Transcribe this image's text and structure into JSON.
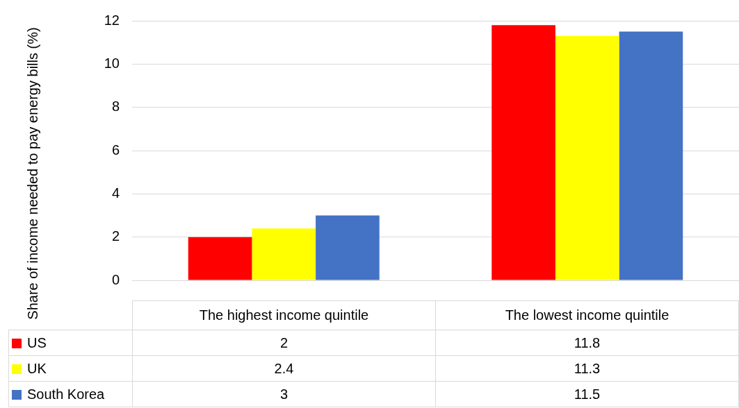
{
  "chart_data": {
    "type": "bar",
    "ylabel": "Share of income needed to pay energy bills (%)",
    "categories": [
      "The highest income quintile",
      "The lowest income quintile"
    ],
    "series": [
      {
        "name": "US",
        "color": "#ff0000",
        "values": [
          2,
          11.8
        ]
      },
      {
        "name": "UK",
        "color": "#ffff00",
        "values": [
          2.4,
          11.3
        ]
      },
      {
        "name": "South Korea",
        "color": "#4472c4",
        "values": [
          3,
          11.5
        ]
      }
    ],
    "ylim": [
      0,
      12
    ],
    "yticks": [
      0,
      2,
      4,
      6,
      8,
      10,
      12
    ],
    "grid": "y",
    "legend": "bottom",
    "data_labels": true
  }
}
